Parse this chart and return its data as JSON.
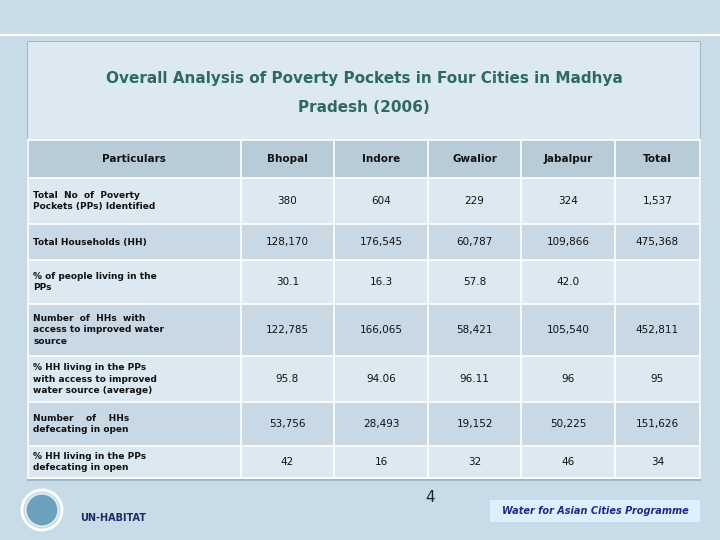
{
  "title_line1": "Overall Analysis of Poverty Pockets in Four Cities in Madhya",
  "title_line2": "Pradesh (2006)",
  "title_color": "#2e6b5e",
  "columns": [
    "Particulars",
    "Bhopal",
    "Indore",
    "Gwalior",
    "Jabalpur",
    "Total"
  ],
  "rows": [
    {
      "label": "Total  No  of  Poverty\nPockets (PPs) Identified",
      "values": [
        "380",
        "604",
        "229",
        "324",
        "1,537"
      ]
    },
    {
      "label": "Total Households (HH)",
      "values": [
        "128,170",
        "176,545",
        "60,787",
        "109,866",
        "475,368"
      ]
    },
    {
      "label": "% of people living in the\nPPs",
      "values": [
        "30.1",
        "16.3",
        "57.8",
        "42.0",
        ""
      ]
    },
    {
      "label": "Number  of  HHs  with\naccess to improved water\nsource",
      "values": [
        "122,785",
        "166,065",
        "58,421",
        "105,540",
        "452,811"
      ]
    },
    {
      "label": "% HH living in the PPs\nwith access to improved\nwater source (average)",
      "values": [
        "95.8",
        "94.06",
        "96.11",
        "96",
        "95"
      ]
    },
    {
      "label": "Number    of    HHs\ndefecating in open",
      "values": [
        "53,756",
        "28,493",
        "19,152",
        "50,225",
        "151,626"
      ]
    },
    {
      "label": "% HH living in the PPs\ndefecating in open",
      "values": [
        "42",
        "16",
        "32",
        "46",
        "34"
      ]
    }
  ],
  "bg_outer": "#a8c0d8",
  "bg_inner": "#c8dce8",
  "table_area_bg": "#d8e8f0",
  "title_area_bg": "#dce8f2",
  "header_bg": "#b8ccd8",
  "row_bg_light": "#dce8f2",
  "row_bg_dark": "#c8d8e4",
  "border_color": "#9ab0c0",
  "cell_border": "#b0c4d0",
  "text_color": "#111111",
  "footer_number": "4",
  "footer_text": "Water for Asian Cities Programme",
  "footer_number_color": "#222222",
  "footer_text_color": "#1a2a8a",
  "logo_color": "#4488aa"
}
